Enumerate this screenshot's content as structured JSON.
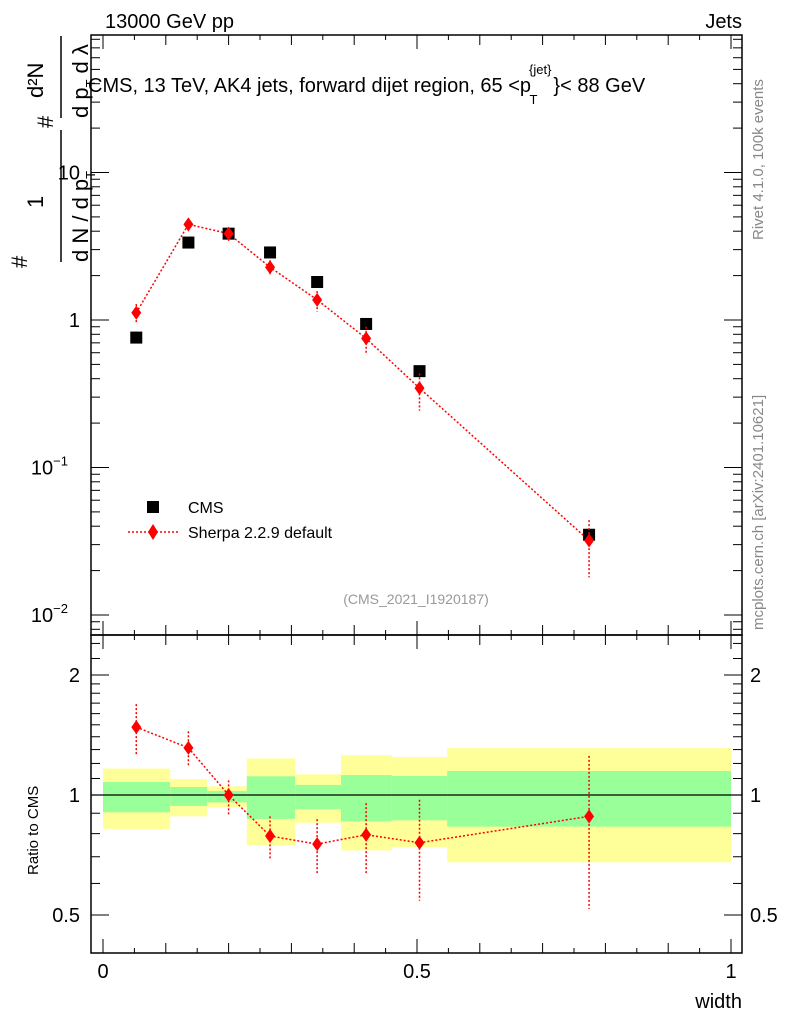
{
  "header": {
    "left": "13000 GeV pp",
    "right": "Jets"
  },
  "side": {
    "rivet": "Rivet 4.1.0,  100k events",
    "mcplots": "mcplots.cern.ch [arXiv:2401.10621]"
  },
  "colors": {
    "cms": "#000000",
    "sherpa": "#ff0000",
    "band_outer": "#ffff99",
    "band_inner": "#99ff99",
    "ref_label": "#999999"
  },
  "chart_data": [
    {
      "type": "scatter",
      "title": "CMS, 13 TeV, AK4 jets, forward dijet region, 65 <p_T^{jet}< 88 GeV",
      "title_parts": {
        "main": "CMS, 13 TeV, AK4 jets, forward dijet region, 65 <p",
        "sup": "{jet}",
        "sub": "T",
        "tail": "}< 88 GeV"
      },
      "ylabel_parts": {
        "hash": "#",
        "one": "1",
        "den1": "d N / d p",
        "T": "T",
        "num2": "d²N",
        "den2a": "d p",
        "den2b": "d λ"
      },
      "xlabel": "",
      "yscale": "log",
      "ylim": [
        0.0072,
        85
      ],
      "xlim": [
        -0.02,
        1.02
      ],
      "yticks": [
        {
          "v": 10,
          "label": "10"
        },
        {
          "v": 1,
          "label": "1"
        },
        {
          "v": 0.1,
          "label": "10",
          "exp": "−1"
        },
        {
          "v": 0.01,
          "label": "10",
          "exp": "−2"
        }
      ],
      "ref_label": "(CMS_2021_I1920187)",
      "legend": {
        "placement": "lower-left",
        "entries": [
          "CMS",
          "Sherpa 2.2.9 default"
        ]
      },
      "series": [
        {
          "name": "CMS",
          "marker": "square",
          "x": [
            0.053,
            0.136,
            0.2,
            0.266,
            0.341,
            0.419,
            0.504,
            0.774
          ],
          "y": [
            0.76,
            3.35,
            3.85,
            2.87,
            1.81,
            0.94,
            0.45,
            0.035
          ]
        },
        {
          "name": "Sherpa 2.2.9 default",
          "marker": "diamond",
          "line": "dotted",
          "x": [
            0.053,
            0.136,
            0.2,
            0.266,
            0.341,
            0.419,
            0.504,
            0.774
          ],
          "y": [
            1.12,
            4.45,
            3.85,
            2.28,
            1.37,
            0.75,
            0.345,
            0.032
          ],
          "y_up": [
            1.28,
            4.9,
            4.19,
            2.54,
            1.57,
            0.9,
            0.435,
            0.044
          ],
          "y_down": [
            0.95,
            4.0,
            3.43,
            1.99,
            1.14,
            0.595,
            0.243,
            0.018
          ]
        }
      ]
    },
    {
      "type": "scatter",
      "ylabel": "Ratio to CMS",
      "xlabel": "width",
      "yscale": "log",
      "ylim": [
        0.4,
        2.52
      ],
      "xlim": [
        -0.02,
        1.02
      ],
      "xticks": [
        {
          "v": 0,
          "label": "0"
        },
        {
          "v": 0.5,
          "label": "0.5"
        },
        {
          "v": 1,
          "label": "1"
        }
      ],
      "yticks": [
        {
          "v": 2,
          "label": "2"
        },
        {
          "v": 1,
          "label": "1"
        },
        {
          "v": 0.5,
          "label": "0.5"
        }
      ],
      "bin_edges": [
        0,
        0.107,
        0.166,
        0.229,
        0.306,
        0.379,
        0.46,
        0.548,
        1.0
      ],
      "cms_band_outer": {
        "up": [
          1.165,
          1.097,
          1.051,
          1.235,
          1.127,
          1.258,
          1.246,
          1.311
        ],
        "down": [
          0.822,
          0.884,
          0.932,
          0.748,
          0.852,
          0.726,
          0.74,
          0.678
        ]
      },
      "cms_band_inner": {
        "up": [
          1.078,
          1.047,
          1.023,
          1.114,
          1.06,
          1.122,
          1.116,
          1.149
        ],
        "down": [
          0.905,
          0.939,
          0.958,
          0.871,
          0.921,
          0.859,
          0.864,
          0.833
        ]
      },
      "series": [
        {
          "name": "Sherpa 2.2.9 default / CMS",
          "x": [
            0.053,
            0.136,
            0.2,
            0.266,
            0.341,
            0.419,
            0.504,
            0.774
          ],
          "y": [
            1.48,
            1.313,
            1.0,
            0.789,
            0.753,
            0.795,
            0.759,
            0.884
          ],
          "y_up": [
            1.69,
            1.445,
            1.088,
            0.884,
            0.87,
            0.954,
            0.973,
            1.254
          ],
          "y_down": [
            1.26,
            1.185,
            0.891,
            0.693,
            0.633,
            0.631,
            0.543,
            0.518
          ]
        }
      ]
    }
  ]
}
